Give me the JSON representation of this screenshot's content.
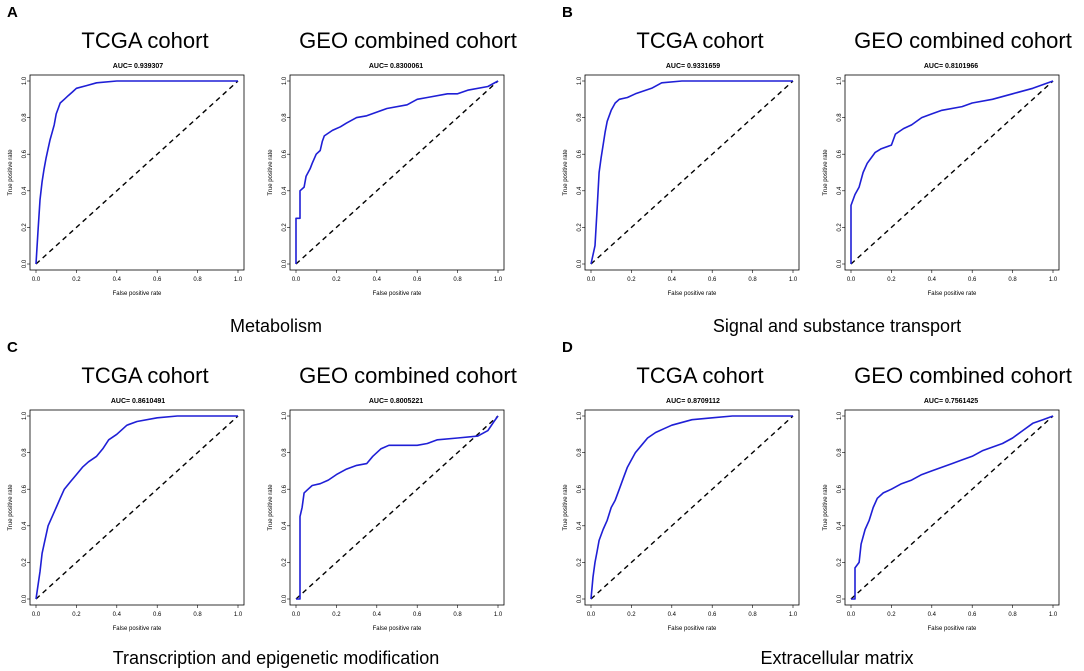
{
  "colors": {
    "curve": "#1f1fd6",
    "diagonal": "#000000"
  },
  "axes": {
    "xlabel": "False positive rate",
    "ylabel": "True positive rate",
    "ticks": [
      0.0,
      0.2,
      0.4,
      0.6,
      0.8,
      1.0
    ],
    "tick_labels": [
      "0.0",
      "0.2",
      "0.4",
      "0.6",
      "0.8",
      "1.0"
    ],
    "xlim": [
      0,
      1
    ],
    "ylim": [
      0,
      1
    ]
  },
  "panels": [
    {
      "letter": "A",
      "caption": "Metabolism",
      "charts": [
        {
          "cohort": "TCGA cohort",
          "auc_label": "AUC= 0.939307",
          "type": "line",
          "points": [
            [
              0,
              0
            ],
            [
              0.01,
              0.18
            ],
            [
              0.02,
              0.35
            ],
            [
              0.03,
              0.45
            ],
            [
              0.04,
              0.52
            ],
            [
              0.05,
              0.58
            ],
            [
              0.06,
              0.63
            ],
            [
              0.07,
              0.68
            ],
            [
              0.08,
              0.72
            ],
            [
              0.09,
              0.76
            ],
            [
              0.1,
              0.82
            ],
            [
              0.11,
              0.85
            ],
            [
              0.12,
              0.88
            ],
            [
              0.14,
              0.9
            ],
            [
              0.16,
              0.92
            ],
            [
              0.18,
              0.94
            ],
            [
              0.2,
              0.96
            ],
            [
              0.25,
              0.975
            ],
            [
              0.3,
              0.99
            ],
            [
              0.4,
              1.0
            ],
            [
              0.6,
              1.0
            ],
            [
              0.8,
              1.0
            ],
            [
              1.0,
              1.0
            ]
          ]
        },
        {
          "cohort": "GEO combined cohort",
          "auc_label": "AUC= 0.8300061",
          "type": "line",
          "points": [
            [
              0,
              0
            ],
            [
              0.0,
              0.25
            ],
            [
              0.02,
              0.25
            ],
            [
              0.02,
              0.4
            ],
            [
              0.04,
              0.42
            ],
            [
              0.05,
              0.48
            ],
            [
              0.07,
              0.52
            ],
            [
              0.08,
              0.55
            ],
            [
              0.1,
              0.6
            ],
            [
              0.12,
              0.62
            ],
            [
              0.13,
              0.67
            ],
            [
              0.14,
              0.7
            ],
            [
              0.18,
              0.73
            ],
            [
              0.22,
              0.75
            ],
            [
              0.25,
              0.77
            ],
            [
              0.3,
              0.8
            ],
            [
              0.35,
              0.81
            ],
            [
              0.4,
              0.83
            ],
            [
              0.45,
              0.85
            ],
            [
              0.55,
              0.87
            ],
            [
              0.6,
              0.9
            ],
            [
              0.65,
              0.91
            ],
            [
              0.75,
              0.93
            ],
            [
              0.8,
              0.93
            ],
            [
              0.85,
              0.95
            ],
            [
              0.95,
              0.97
            ],
            [
              1.0,
              1.0
            ]
          ]
        }
      ]
    },
    {
      "letter": "B",
      "caption": "Signal and substance transport",
      "charts": [
        {
          "cohort": "TCGA cohort",
          "auc_label": "AUC= 0.9331659",
          "type": "line",
          "points": [
            [
              0,
              0
            ],
            [
              0.02,
              0.1
            ],
            [
              0.03,
              0.3
            ],
            [
              0.04,
              0.5
            ],
            [
              0.05,
              0.58
            ],
            [
              0.06,
              0.65
            ],
            [
              0.07,
              0.72
            ],
            [
              0.08,
              0.78
            ],
            [
              0.1,
              0.84
            ],
            [
              0.12,
              0.88
            ],
            [
              0.14,
              0.9
            ],
            [
              0.18,
              0.91
            ],
            [
              0.22,
              0.93
            ],
            [
              0.3,
              0.96
            ],
            [
              0.35,
              0.99
            ],
            [
              0.45,
              1.0
            ],
            [
              0.7,
              1.0
            ],
            [
              1.0,
              1.0
            ]
          ]
        },
        {
          "cohort": "GEO combined cohort",
          "auc_label": "AUC= 0.8101966",
          "type": "line",
          "points": [
            [
              0,
              0
            ],
            [
              0.0,
              0.32
            ],
            [
              0.02,
              0.38
            ],
            [
              0.04,
              0.42
            ],
            [
              0.06,
              0.5
            ],
            [
              0.08,
              0.55
            ],
            [
              0.1,
              0.58
            ],
            [
              0.12,
              0.61
            ],
            [
              0.15,
              0.63
            ],
            [
              0.2,
              0.65
            ],
            [
              0.22,
              0.71
            ],
            [
              0.26,
              0.74
            ],
            [
              0.3,
              0.76
            ],
            [
              0.35,
              0.8
            ],
            [
              0.4,
              0.82
            ],
            [
              0.45,
              0.84
            ],
            [
              0.55,
              0.86
            ],
            [
              0.6,
              0.88
            ],
            [
              0.7,
              0.9
            ],
            [
              0.8,
              0.93
            ],
            [
              0.9,
              0.96
            ],
            [
              1.0,
              1.0
            ]
          ]
        }
      ]
    },
    {
      "letter": "C",
      "caption": "Transcription and epigenetic modification",
      "charts": [
        {
          "cohort": "TCGA cohort",
          "auc_label": "AUC= 0.8610491",
          "type": "line",
          "points": [
            [
              0,
              0
            ],
            [
              0.02,
              0.15
            ],
            [
              0.03,
              0.25
            ],
            [
              0.04,
              0.3
            ],
            [
              0.05,
              0.35
            ],
            [
              0.06,
              0.4
            ],
            [
              0.08,
              0.45
            ],
            [
              0.1,
              0.5
            ],
            [
              0.12,
              0.55
            ],
            [
              0.14,
              0.6
            ],
            [
              0.17,
              0.64
            ],
            [
              0.2,
              0.68
            ],
            [
              0.23,
              0.72
            ],
            [
              0.26,
              0.75
            ],
            [
              0.3,
              0.78
            ],
            [
              0.33,
              0.82
            ],
            [
              0.36,
              0.87
            ],
            [
              0.4,
              0.9
            ],
            [
              0.45,
              0.95
            ],
            [
              0.5,
              0.97
            ],
            [
              0.6,
              0.99
            ],
            [
              0.7,
              1.0
            ],
            [
              1.0,
              1.0
            ]
          ]
        },
        {
          "cohort": "GEO combined cohort",
          "auc_label": "AUC= 0.8005221",
          "type": "line",
          "points": [
            [
              0,
              0
            ],
            [
              0.02,
              0.0
            ],
            [
              0.02,
              0.45
            ],
            [
              0.03,
              0.5
            ],
            [
              0.04,
              0.58
            ],
            [
              0.06,
              0.6
            ],
            [
              0.08,
              0.62
            ],
            [
              0.12,
              0.63
            ],
            [
              0.16,
              0.65
            ],
            [
              0.2,
              0.68
            ],
            [
              0.25,
              0.71
            ],
            [
              0.3,
              0.73
            ],
            [
              0.35,
              0.74
            ],
            [
              0.38,
              0.78
            ],
            [
              0.42,
              0.82
            ],
            [
              0.46,
              0.84
            ],
            [
              0.55,
              0.84
            ],
            [
              0.6,
              0.84
            ],
            [
              0.65,
              0.85
            ],
            [
              0.7,
              0.87
            ],
            [
              0.8,
              0.88
            ],
            [
              0.9,
              0.89
            ],
            [
              0.95,
              0.92
            ],
            [
              0.98,
              0.97
            ],
            [
              1.0,
              1.0
            ]
          ]
        }
      ]
    },
    {
      "letter": "D",
      "caption": "Extracellular matrix",
      "charts": [
        {
          "cohort": "TCGA cohort",
          "auc_label": "AUC= 0.8709112",
          "type": "line",
          "points": [
            [
              0,
              0
            ],
            [
              0.01,
              0.12
            ],
            [
              0.02,
              0.2
            ],
            [
              0.03,
              0.26
            ],
            [
              0.04,
              0.32
            ],
            [
              0.06,
              0.38
            ],
            [
              0.08,
              0.43
            ],
            [
              0.1,
              0.5
            ],
            [
              0.12,
              0.54
            ],
            [
              0.14,
              0.6
            ],
            [
              0.16,
              0.66
            ],
            [
              0.18,
              0.72
            ],
            [
              0.2,
              0.76
            ],
            [
              0.22,
              0.8
            ],
            [
              0.25,
              0.84
            ],
            [
              0.28,
              0.88
            ],
            [
              0.32,
              0.91
            ],
            [
              0.36,
              0.93
            ],
            [
              0.4,
              0.95
            ],
            [
              0.5,
              0.98
            ],
            [
              0.6,
              0.99
            ],
            [
              0.7,
              1.0
            ],
            [
              1.0,
              1.0
            ]
          ]
        },
        {
          "cohort": "GEO combined cohort",
          "auc_label": "AUC= 0.7561425",
          "type": "line",
          "points": [
            [
              0,
              0
            ],
            [
              0.02,
              0.0
            ],
            [
              0.02,
              0.17
            ],
            [
              0.04,
              0.2
            ],
            [
              0.05,
              0.3
            ],
            [
              0.07,
              0.38
            ],
            [
              0.09,
              0.43
            ],
            [
              0.11,
              0.5
            ],
            [
              0.13,
              0.55
            ],
            [
              0.16,
              0.58
            ],
            [
              0.2,
              0.6
            ],
            [
              0.25,
              0.63
            ],
            [
              0.3,
              0.65
            ],
            [
              0.35,
              0.68
            ],
            [
              0.4,
              0.7
            ],
            [
              0.45,
              0.72
            ],
            [
              0.5,
              0.74
            ],
            [
              0.55,
              0.76
            ],
            [
              0.6,
              0.78
            ],
            [
              0.65,
              0.81
            ],
            [
              0.7,
              0.83
            ],
            [
              0.75,
              0.85
            ],
            [
              0.8,
              0.88
            ],
            [
              0.85,
              0.92
            ],
            [
              0.9,
              0.96
            ],
            [
              0.95,
              0.98
            ],
            [
              1.0,
              1.0
            ]
          ]
        }
      ]
    }
  ],
  "chart_data": [
    {
      "type": "line",
      "panel": "A",
      "title": "TCGA cohort",
      "subtitle": "AUC= 0.939307",
      "xlabel": "False positive rate",
      "ylabel": "True positive rate",
      "xlim": [
        0,
        1
      ],
      "ylim": [
        0,
        1
      ]
    },
    {
      "type": "line",
      "panel": "A",
      "title": "GEO combined cohort",
      "subtitle": "AUC= 0.8300061",
      "xlabel": "False positive rate",
      "ylabel": "True positive rate",
      "xlim": [
        0,
        1
      ],
      "ylim": [
        0,
        1
      ]
    },
    {
      "type": "line",
      "panel": "B",
      "title": "TCGA cohort",
      "subtitle": "AUC= 0.9331659",
      "xlabel": "False positive rate",
      "ylabel": "True positive rate",
      "xlim": [
        0,
        1
      ],
      "ylim": [
        0,
        1
      ]
    },
    {
      "type": "line",
      "panel": "B",
      "title": "GEO combined cohort",
      "subtitle": "AUC= 0.8101966",
      "xlabel": "False positive rate",
      "ylabel": "True positive rate",
      "xlim": [
        0,
        1
      ],
      "ylim": [
        0,
        1
      ]
    },
    {
      "type": "line",
      "panel": "C",
      "title": "TCGA cohort",
      "subtitle": "AUC= 0.8610491",
      "xlabel": "False positive rate",
      "ylabel": "True positive rate",
      "xlim": [
        0,
        1
      ],
      "ylim": [
        0,
        1
      ]
    },
    {
      "type": "line",
      "panel": "C",
      "title": "GEO combined cohort",
      "subtitle": "AUC= 0.8005221",
      "xlabel": "False positive rate",
      "ylabel": "True positive rate",
      "xlim": [
        0,
        1
      ],
      "ylim": [
        0,
        1
      ]
    },
    {
      "type": "line",
      "panel": "D",
      "title": "TCGA cohort",
      "subtitle": "AUC= 0.8709112",
      "xlabel": "False positive rate",
      "ylabel": "True positive rate",
      "xlim": [
        0,
        1
      ],
      "ylim": [
        0,
        1
      ]
    },
    {
      "type": "line",
      "panel": "D",
      "title": "GEO combined cohort",
      "subtitle": "AUC= 0.7561425",
      "xlabel": "False positive rate",
      "ylabel": "True positive rate",
      "xlim": [
        0,
        1
      ],
      "ylim": [
        0,
        1
      ]
    }
  ]
}
